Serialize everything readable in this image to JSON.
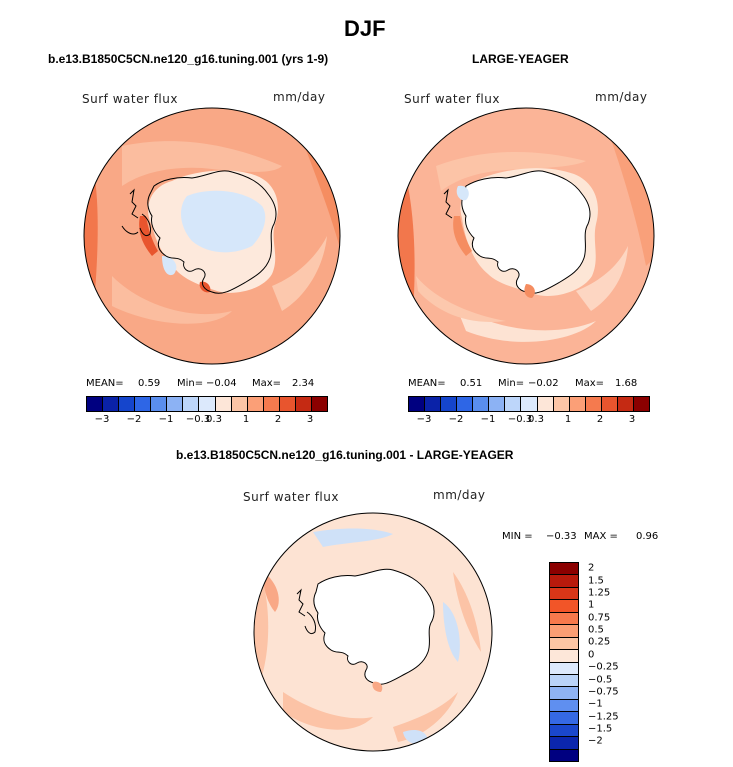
{
  "figure": {
    "season": "DJF",
    "panels": [
      {
        "title": "b.e13.B1850C5CN.ne120_g16.tuning.001 (yrs 1-9)",
        "variable": "Surf water flux",
        "units": "mm/day",
        "stats": {
          "mean_label": "MEAN=",
          "mean": "0.59",
          "min_label": "Min=",
          "min": "−0.04",
          "max_label": "Max=",
          "max": "2.34"
        }
      },
      {
        "title": "LARGE-YEAGER",
        "variable": "Surf water flux",
        "units": "mm/day",
        "stats": {
          "mean_label": "MEAN=",
          "mean": "0.51",
          "min_label": "Min=",
          "min": "−0.02",
          "max_label": "Max=",
          "max": "1.68"
        }
      },
      {
        "title": "b.e13.B1850C5CN.ne120_g16.tuning.001 - LARGE-YEAGER",
        "variable": "Surf water flux",
        "units": "mm/day",
        "stats": {
          "min_label": "MIN =",
          "min": "−0.33",
          "max_label": "MAX =",
          "max": "0.96"
        }
      }
    ]
  },
  "colorbars": {
    "horizontal": {
      "colors": [
        "#000080",
        "#0a22a8",
        "#1545cc",
        "#2e66e6",
        "#5a8eee",
        "#8cb2f4",
        "#bdd6fa",
        "#dce9fc",
        "#fde6d8",
        "#fcc5a6",
        "#fb9f77",
        "#f57a4e",
        "#e8552e",
        "#c52a13",
        "#8b0000"
      ],
      "tick_labels": [
        "−3",
        "−2",
        "−1",
        "−0.3",
        "0.3",
        "1",
        "2",
        "3"
      ]
    },
    "vertical": {
      "colors": [
        "#8b0000",
        "#b81a0c",
        "#d93618",
        "#f25528",
        "#f7794c",
        "#fb9e74",
        "#fcc5a4",
        "#fde7d9",
        "#dde9fc",
        "#bad3f8",
        "#8fb3f3",
        "#5f8ff0",
        "#3569e4",
        "#1a47cc",
        "#0b26ad",
        "#000080"
      ],
      "tick_labels": [
        "2",
        "1.5",
        "1.25",
        "1",
        "0.75",
        "0.5",
        "0.25",
        "0",
        "−0.25",
        "−0.5",
        "−0.75",
        "−1",
        "−1.25",
        "−1.5",
        "−2"
      ]
    }
  },
  "map_colors": {
    "ocean_panel1": "#f9a886",
    "ocean_panel2": "#fbb497",
    "high": "#f2774c",
    "low": "#fde6d6",
    "ice_light_blue": "#d6e7fa",
    "ice_beige": "#fde9dc",
    "diff_ocean": "#fde3d3",
    "diff_pos": "#fcc3a6",
    "diff_neg": "#cfe1f8",
    "land_white": "#ffffff"
  }
}
